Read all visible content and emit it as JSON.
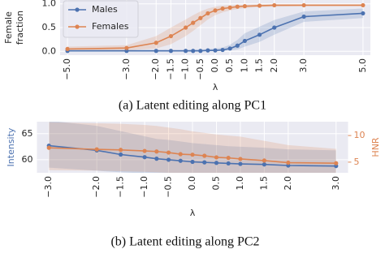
{
  "chart_data": [
    {
      "type": "line",
      "caption": "(a) Latent editing along PC1",
      "ylabel": [
        "Female",
        "fraction"
      ],
      "xlabel": "λ",
      "x": [
        -5,
        -3,
        -2,
        -1.5,
        -1,
        -0.75,
        -0.5,
        -0.25,
        0,
        0.25,
        0.5,
        0.75,
        1,
        1.5,
        2,
        3,
        5
      ],
      "xlim": [
        -5.25,
        5.25
      ],
      "ylim": [
        -0.08,
        1.08
      ],
      "xticks": [
        {
          "value": -5,
          "label": "−5.0"
        },
        {
          "value": -3,
          "label": "−3.0"
        },
        {
          "value": -2,
          "label": "−2.0"
        },
        {
          "value": -1.5,
          "label": "−1.5"
        },
        {
          "value": -1,
          "label": "−1.0"
        },
        {
          "value": -0.5,
          "label": "−0.5"
        },
        {
          "value": 0,
          "label": "0.0"
        },
        {
          "value": 0.5,
          "label": "0.5"
        },
        {
          "value": 1,
          "label": "1.0"
        },
        {
          "value": 1.5,
          "label": "1.5"
        },
        {
          "value": 2,
          "label": "2.0"
        },
        {
          "value": 3,
          "label": "3.0"
        },
        {
          "value": 5,
          "label": "5.0"
        }
      ],
      "yticks": [
        {
          "value": 0,
          "label": "0.0"
        },
        0.5,
        {
          "value": 1,
          "label": "1.0"
        }
      ],
      "grid": true,
      "legend": "upper left",
      "series": [
        {
          "name": "Males",
          "color": "#4c72b0",
          "values": [
            0.01,
            0.01,
            0.01,
            0.01,
            0.01,
            0.01,
            0.01,
            0.02,
            0.02,
            0.03,
            0.06,
            0.12,
            0.22,
            0.35,
            0.5,
            0.73,
            0.8
          ],
          "lower": [
            0,
            0,
            0,
            0,
            0,
            0,
            0,
            0,
            0,
            0.01,
            0.02,
            0.04,
            0.1,
            0.2,
            0.35,
            0.62,
            0.7
          ],
          "upper": [
            0.03,
            0.03,
            0.03,
            0.03,
            0.03,
            0.04,
            0.04,
            0.05,
            0.06,
            0.08,
            0.14,
            0.24,
            0.38,
            0.52,
            0.66,
            0.84,
            0.9
          ]
        },
        {
          "name": "Females",
          "color": "#dd8452",
          "values": [
            0.05,
            0.07,
            0.18,
            0.32,
            0.5,
            0.6,
            0.7,
            0.8,
            0.86,
            0.9,
            0.92,
            0.94,
            0.95,
            0.96,
            0.97,
            0.97,
            0.97
          ],
          "lower": [
            0.01,
            0.02,
            0.06,
            0.15,
            0.32,
            0.43,
            0.55,
            0.67,
            0.76,
            0.82,
            0.86,
            0.89,
            0.91,
            0.93,
            0.94,
            0.95,
            0.95
          ],
          "upper": [
            0.1,
            0.13,
            0.32,
            0.5,
            0.67,
            0.76,
            0.84,
            0.9,
            0.94,
            0.96,
            0.97,
            0.98,
            0.98,
            0.99,
            0.99,
            0.99,
            0.99
          ]
        }
      ]
    },
    {
      "type": "line",
      "caption": "(b) Latent editing along PC2",
      "ylabel": [
        "Intensity"
      ],
      "y2label": "HNR",
      "xlabel": "λ",
      "x": [
        -3,
        -2,
        -1.5,
        -1,
        -0.75,
        -0.5,
        -0.25,
        0,
        0.25,
        0.5,
        0.75,
        1,
        1.5,
        2,
        3
      ],
      "xlim": [
        -3.25,
        3.25
      ],
      "ylim": [
        57.5,
        67.3
      ],
      "y2lim": [
        3.0,
        12.6
      ],
      "xticks": [
        {
          "value": -3,
          "label": "−3.0"
        },
        {
          "value": -2,
          "label": "−2.0"
        },
        {
          "value": -1.5,
          "label": "−1.5"
        },
        {
          "value": -1,
          "label": "−1.0"
        },
        {
          "value": -0.5,
          "label": "−0.5"
        },
        {
          "value": 0,
          "label": "0.0"
        },
        {
          "value": 0.5,
          "label": "0.5"
        },
        {
          "value": 1,
          "label": "1.0"
        },
        {
          "value": 1.5,
          "label": "1.5"
        },
        {
          "value": 2,
          "label": "2.0"
        },
        {
          "value": 3,
          "label": "3.0"
        }
      ],
      "yticks": [
        60,
        65
      ],
      "y2ticks": [
        5,
        10
      ],
      "grid": true,
      "series": [
        {
          "name": "Intensity",
          "color": "#4c72b0",
          "values": [
            62.7,
            61.8,
            61.0,
            60.5,
            60.2,
            60.0,
            59.8,
            59.6,
            59.5,
            59.4,
            59.3,
            59.2,
            59.1,
            58.9,
            58.8
          ],
          "lower": [
            58.5,
            57.9,
            57.6,
            57.4,
            57.3,
            57.2,
            57.2,
            57.1,
            57.1,
            57.0,
            57.0,
            57.0,
            57.0,
            56.9,
            56.9
          ],
          "upper": [
            67.5,
            66.5,
            65.5,
            64.5,
            64,
            63.8,
            63.5,
            63.2,
            63,
            62.8,
            62.6,
            62.5,
            62.3,
            62,
            61.8
          ]
        },
        {
          "name": "HNR",
          "color": "#dd8452",
          "axis": "y2",
          "values": [
            7.7,
            7.4,
            7.3,
            7.1,
            7.0,
            6.8,
            6.5,
            6.4,
            6.2,
            5.9,
            5.8,
            5.6,
            5.3,
            4.9,
            4.8
          ],
          "lower": [
            3.5,
            3.4,
            3.3,
            3.2,
            3.1,
            3.0,
            3.0,
            3.0,
            3.0,
            3.0,
            3.0,
            3.0,
            3.0,
            3.0,
            3.0
          ],
          "upper": [
            12.5,
            12.3,
            12.2,
            12,
            11.8,
            11.5,
            11.2,
            10.8,
            10.5,
            10.2,
            10,
            9.8,
            9,
            8.2,
            7.5
          ]
        }
      ]
    }
  ]
}
